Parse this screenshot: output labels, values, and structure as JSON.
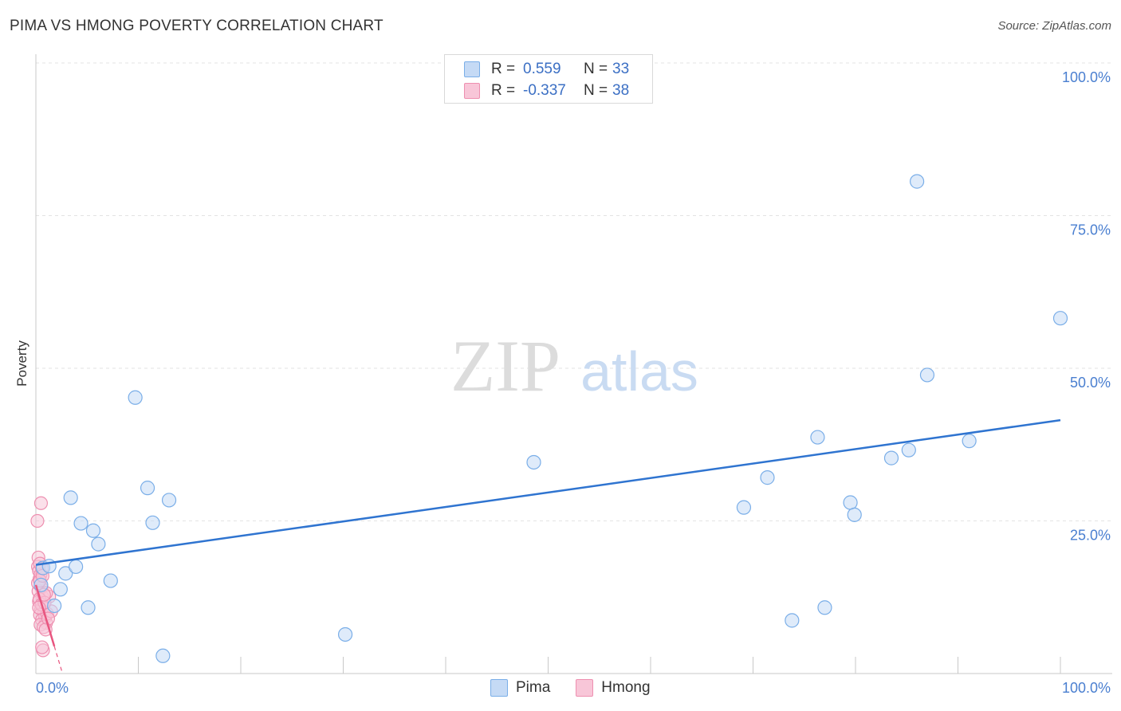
{
  "chart_data": {
    "type": "scatter",
    "title": "PIMA VS HMONG POVERTY CORRELATION CHART",
    "source": "Source: ZipAtlas.com",
    "ylabel": "Poverty",
    "xlabel": "",
    "xlim": [
      0,
      100
    ],
    "ylim": [
      0,
      100
    ],
    "x_tick_labels": [
      "0.0%",
      "100.0%"
    ],
    "y_ticks": [
      25,
      50,
      75,
      100
    ],
    "y_tick_labels": [
      "25.0%",
      "50.0%",
      "75.0%",
      "100.0%"
    ],
    "watermark": {
      "zip": "ZIP",
      "atlas": "atlas"
    },
    "legend": {
      "entries": [
        {
          "r_label": "R =",
          "r_value": "0.559",
          "n_label": "N =",
          "n_value": "33"
        },
        {
          "r_label": "R =",
          "r_value": "-0.337",
          "n_label": "N =",
          "n_value": "38"
        }
      ]
    },
    "series": [
      {
        "name": "Pima",
        "color": "#7aaee8",
        "fill": "#c5daf5",
        "line_color": "#2f74d0",
        "trend": {
          "x0": 0,
          "y0": 17.8,
          "x1": 100,
          "y1": 41.5
        },
        "points": [
          [
            0.5,
            14.5
          ],
          [
            0.7,
            17.3
          ],
          [
            1.3,
            17.6
          ],
          [
            1.8,
            11.1
          ],
          [
            2.4,
            13.8
          ],
          [
            2.9,
            16.4
          ],
          [
            3.4,
            28.8
          ],
          [
            3.9,
            17.5
          ],
          [
            4.4,
            24.6
          ],
          [
            5.1,
            10.8
          ],
          [
            5.6,
            23.4
          ],
          [
            6.1,
            21.2
          ],
          [
            7.3,
            15.2
          ],
          [
            9.7,
            45.2
          ],
          [
            10.9,
            30.4
          ],
          [
            11.4,
            24.7
          ],
          [
            12.4,
            2.9
          ],
          [
            13.0,
            28.4
          ],
          [
            30.2,
            6.4
          ],
          [
            48.6,
            34.6
          ],
          [
            69.1,
            27.2
          ],
          [
            71.4,
            32.1
          ],
          [
            73.8,
            8.7
          ],
          [
            76.3,
            38.7
          ],
          [
            77.0,
            10.8
          ],
          [
            79.5,
            28.0
          ],
          [
            79.9,
            26.0
          ],
          [
            83.5,
            35.3
          ],
          [
            85.2,
            36.6
          ],
          [
            86.0,
            80.6
          ],
          [
            87.0,
            48.9
          ],
          [
            91.1,
            38.1
          ],
          [
            100.0,
            58.2
          ]
        ]
      },
      {
        "name": "Hmong",
        "color": "#ee8fb0",
        "fill": "#f8c6d8",
        "line_color": "#e8557f",
        "trend": {
          "x0": 0,
          "y0": 14.5,
          "x1": 2.6,
          "y1": 0
        },
        "trend_solid_until_x": 1.8,
        "points": [
          [
            0.15,
            25.0
          ],
          [
            0.25,
            19.0
          ],
          [
            0.2,
            17.5
          ],
          [
            0.3,
            16.8
          ],
          [
            0.4,
            18.0
          ],
          [
            0.5,
            27.9
          ],
          [
            0.35,
            15.5
          ],
          [
            0.45,
            16.2
          ],
          [
            0.6,
            17.2
          ],
          [
            0.55,
            14.0
          ],
          [
            0.25,
            13.5
          ],
          [
            0.65,
            12.5
          ],
          [
            0.3,
            11.8
          ],
          [
            0.7,
            11.0
          ],
          [
            0.5,
            10.5
          ],
          [
            0.8,
            10.0
          ],
          [
            0.4,
            9.6
          ],
          [
            0.9,
            9.2
          ],
          [
            0.6,
            8.8
          ],
          [
            1.0,
            8.3
          ],
          [
            0.45,
            8.0
          ],
          [
            0.75,
            7.6
          ],
          [
            1.1,
            9.8
          ],
          [
            1.3,
            12.6
          ],
          [
            1.5,
            10.2
          ],
          [
            1.0,
            13.2
          ],
          [
            0.35,
            12.2
          ],
          [
            0.55,
            11.3
          ],
          [
            0.85,
            11.6
          ],
          [
            1.2,
            9.0
          ],
          [
            0.7,
            3.8
          ],
          [
            0.6,
            4.3
          ],
          [
            0.95,
            7.2
          ],
          [
            0.2,
            14.8
          ],
          [
            0.4,
            15.2
          ],
          [
            0.65,
            16.0
          ],
          [
            0.3,
            10.8
          ],
          [
            0.8,
            12.9
          ]
        ]
      }
    ]
  }
}
